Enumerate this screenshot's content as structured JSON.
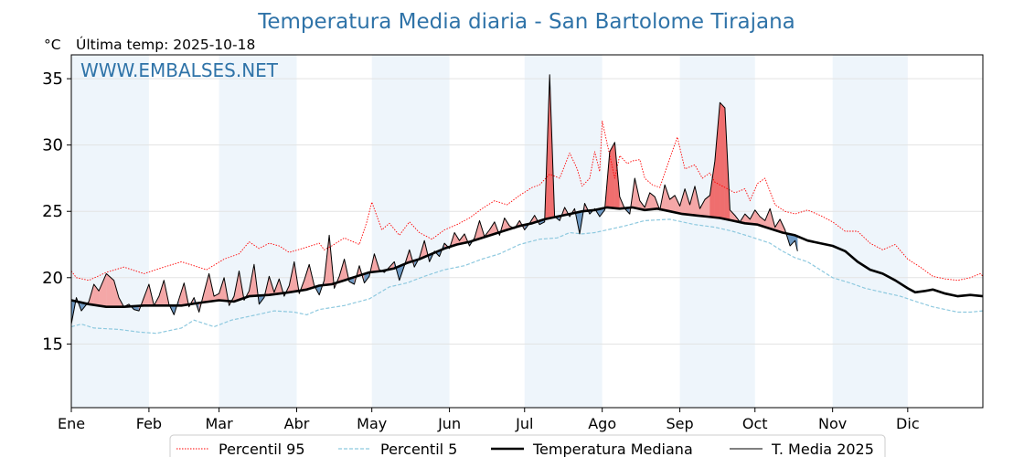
{
  "title": "Temperatura Media diaria - San Bartolome Tirajana",
  "unit_label": "°C",
  "last_temp_label": "Última temp: 2025-10-18",
  "watermark": "WWW.EMBALSES.NET",
  "colors": {
    "title": "#2f73a8",
    "p95": "#ff0000",
    "p5": "#8ec9df",
    "median": "#000000",
    "current": "#000000",
    "fill_above": "#f4a7a7",
    "fill_above_strong": "#ef6e6e",
    "fill_below": "#6f9ac4",
    "month_band": "#eef5fb"
  },
  "chart_data": {
    "type": "line",
    "title": "Temperatura Media diaria - San Bartolome Tirajana",
    "ylabel": "°C",
    "ylim": [
      10.2,
      36.8
    ],
    "yticks": [
      15,
      20,
      25,
      30,
      35
    ],
    "x_domain_days": [
      1,
      365
    ],
    "grid": true,
    "legend_placement": "bottom-center",
    "months": [
      {
        "label": "Ene",
        "day": 1
      },
      {
        "label": "Feb",
        "day": 32
      },
      {
        "label": "Mar",
        "day": 60
      },
      {
        "label": "Abr",
        "day": 91
      },
      {
        "label": "May",
        "day": 121
      },
      {
        "label": "Jun",
        "day": 152
      },
      {
        "label": "Jul",
        "day": 182
      },
      {
        "label": "Ago",
        "day": 213
      },
      {
        "label": "Sep",
        "day": 244
      },
      {
        "label": "Oct",
        "day": 274
      },
      {
        "label": "Nov",
        "day": 305
      },
      {
        "label": "Dic",
        "day": 335
      }
    ],
    "series": [
      {
        "name": "Percentil 95",
        "style": "dotted-red",
        "x": [
          1,
          3,
          8,
          15,
          22,
          30,
          38,
          45,
          55,
          62,
          68,
          72,
          76,
          80,
          84,
          88,
          95,
          100,
          102,
          105,
          110,
          116,
          119,
          121,
          125,
          128,
          132,
          136,
          140,
          145,
          150,
          155,
          160,
          165,
          170,
          175,
          180,
          185,
          188,
          192,
          196,
          200,
          203,
          205,
          208,
          210,
          212,
          213,
          218,
          220,
          223,
          225,
          228,
          230,
          233,
          236,
          240,
          243,
          246,
          250,
          253,
          256,
          258,
          262,
          266,
          270,
          272,
          275,
          278,
          282,
          286,
          290,
          295,
          300,
          305,
          310,
          315,
          320,
          325,
          330,
          335,
          340,
          345,
          350,
          355,
          360,
          364,
          365
        ],
        "values": [
          20.5,
          20.0,
          19.8,
          20.4,
          20.8,
          20.3,
          20.8,
          21.2,
          20.6,
          21.4,
          21.8,
          22.7,
          22.2,
          22.6,
          22.4,
          21.9,
          22.3,
          22.6,
          22.1,
          22.4,
          23.0,
          22.5,
          24.2,
          25.7,
          23.6,
          24.1,
          23.2,
          24.2,
          23.4,
          22.9,
          23.6,
          24.0,
          24.5,
          25.2,
          25.8,
          25.5,
          26.2,
          26.8,
          27.0,
          27.8,
          27.5,
          29.4,
          28.2,
          26.9,
          27.5,
          29.5,
          28.0,
          31.8,
          27.5,
          29.2,
          28.6,
          28.8,
          28.9,
          27.5,
          27.0,
          26.8,
          29.0,
          30.6,
          28.2,
          28.5,
          27.5,
          27.9,
          27.2,
          26.8,
          26.4,
          26.7,
          25.8,
          27.1,
          27.5,
          25.5,
          25.0,
          24.8,
          25.1,
          24.7,
          24.2,
          23.5,
          23.5,
          22.6,
          22.1,
          22.5,
          21.4,
          20.8,
          20.1,
          19.9,
          19.8,
          20.0,
          20.3,
          20.1
        ]
      },
      {
        "name": "Percentil 5",
        "style": "dashed-lightblue",
        "x": [
          1,
          5,
          10,
          20,
          28,
          35,
          45,
          50,
          58,
          65,
          75,
          82,
          90,
          95,
          100,
          110,
          120,
          128,
          135,
          142,
          150,
          158,
          165,
          172,
          180,
          188,
          195,
          200,
          205,
          210,
          215,
          222,
          230,
          240,
          250,
          258,
          265,
          272,
          280,
          285,
          290,
          295,
          300,
          305,
          312,
          318,
          325,
          332,
          340,
          345,
          350,
          355,
          360,
          365
        ],
        "values": [
          16.3,
          16.5,
          16.2,
          16.1,
          15.9,
          15.8,
          16.2,
          16.8,
          16.3,
          16.8,
          17.2,
          17.5,
          17.4,
          17.2,
          17.6,
          17.9,
          18.4,
          19.3,
          19.6,
          20.1,
          20.6,
          20.9,
          21.4,
          21.8,
          22.5,
          22.9,
          23.0,
          23.4,
          23.3,
          23.4,
          23.6,
          23.9,
          24.3,
          24.4,
          24.0,
          23.8,
          23.5,
          23.1,
          22.6,
          22.0,
          21.5,
          21.2,
          20.6,
          20.0,
          19.6,
          19.2,
          18.9,
          18.6,
          18.1,
          17.8,
          17.6,
          17.4,
          17.4,
          17.5
        ]
      },
      {
        "name": "Temperatura Mediana",
        "style": "thick-black",
        "x": [
          1,
          8,
          15,
          22,
          30,
          38,
          45,
          52,
          60,
          66,
          72,
          80,
          88,
          95,
          100,
          105,
          110,
          115,
          120,
          125,
          130,
          135,
          140,
          145,
          150,
          155,
          160,
          165,
          170,
          175,
          180,
          185,
          190,
          195,
          200,
          205,
          210,
          215,
          220,
          225,
          230,
          235,
          240,
          245,
          250,
          255,
          260,
          265,
          270,
          275,
          280,
          285,
          290,
          295,
          300,
          305,
          310,
          315,
          320,
          325,
          330,
          335,
          338,
          342,
          345,
          350,
          355,
          360,
          365
        ],
        "values": [
          18.3,
          18.0,
          17.8,
          17.8,
          17.9,
          17.9,
          17.9,
          18.1,
          18.3,
          18.2,
          18.6,
          18.7,
          18.9,
          19.1,
          19.4,
          19.5,
          19.8,
          20.1,
          20.4,
          20.5,
          20.7,
          21.1,
          21.4,
          21.8,
          22.2,
          22.5,
          22.7,
          23.0,
          23.3,
          23.6,
          23.9,
          24.1,
          24.4,
          24.6,
          24.8,
          25.0,
          25.1,
          25.3,
          25.2,
          25.3,
          25.1,
          25.2,
          25.0,
          24.8,
          24.7,
          24.6,
          24.5,
          24.3,
          24.1,
          24.0,
          23.7,
          23.4,
          23.2,
          22.8,
          22.6,
          22.4,
          22.0,
          21.2,
          20.6,
          20.3,
          19.8,
          19.2,
          18.9,
          19.0,
          19.1,
          18.8,
          18.6,
          18.7,
          18.6
        ]
      },
      {
        "name": "T. Media 2025",
        "style": "thin-black",
        "x": [
          1,
          3,
          5,
          8,
          10,
          12,
          15,
          18,
          20,
          22,
          24,
          26,
          28,
          30,
          32,
          34,
          36,
          38,
          40,
          42,
          44,
          46,
          48,
          50,
          52,
          54,
          56,
          58,
          60,
          62,
          64,
          66,
          68,
          70,
          72,
          74,
          76,
          78,
          80,
          82,
          84,
          86,
          88,
          90,
          92,
          94,
          96,
          98,
          100,
          102,
          104,
          106,
          108,
          110,
          112,
          114,
          116,
          118,
          120,
          122,
          124,
          126,
          128,
          130,
          132,
          134,
          136,
          138,
          140,
          142,
          144,
          146,
          148,
          150,
          152,
          154,
          156,
          158,
          160,
          162,
          164,
          166,
          168,
          170,
          172,
          174,
          176,
          178,
          180,
          182,
          184,
          186,
          188,
          190,
          192,
          194,
          196,
          198,
          200,
          202,
          204,
          206,
          208,
          210,
          212,
          214,
          216,
          218,
          220,
          222,
          224,
          226,
          228,
          230,
          232,
          234,
          236,
          238,
          240,
          242,
          244,
          246,
          248,
          250,
          252,
          254,
          256,
          258,
          260,
          262,
          264,
          266,
          268,
          270,
          272,
          274,
          276,
          278,
          280,
          282,
          284,
          286,
          288,
          290,
          291
        ],
        "values": [
          16.5,
          18.5,
          17.5,
          18.2,
          19.5,
          19.0,
          20.3,
          19.8,
          18.5,
          17.8,
          18.0,
          17.6,
          17.5,
          18.5,
          19.5,
          17.9,
          18.6,
          19.8,
          18.0,
          17.2,
          18.4,
          19.6,
          17.8,
          18.5,
          17.4,
          18.9,
          20.3,
          18.6,
          18.8,
          20.0,
          17.9,
          18.6,
          20.5,
          18.3,
          19.0,
          21.0,
          18.0,
          18.5,
          20.1,
          18.9,
          19.9,
          18.6,
          19.4,
          21.2,
          18.8,
          19.8,
          21.0,
          19.4,
          18.7,
          19.8,
          23.2,
          19.2,
          20.1,
          21.4,
          19.7,
          19.5,
          20.9,
          19.6,
          20.1,
          21.8,
          20.6,
          20.4,
          20.8,
          21.2,
          19.8,
          20.9,
          22.1,
          20.8,
          21.5,
          22.8,
          21.2,
          22.0,
          21.6,
          22.6,
          22.2,
          23.4,
          22.8,
          23.3,
          22.4,
          23.0,
          24.3,
          23.1,
          23.6,
          24.2,
          23.2,
          24.5,
          23.9,
          23.7,
          24.3,
          23.6,
          24.1,
          24.7,
          24.0,
          24.2,
          35.3,
          24.6,
          24.3,
          25.3,
          24.6,
          25.2,
          23.3,
          25.6,
          24.8,
          25.2,
          24.6,
          25.1,
          29.5,
          30.2,
          26.1,
          25.2,
          24.8,
          27.5,
          25.8,
          25.3,
          26.4,
          26.1,
          25.1,
          27.0,
          25.9,
          26.2,
          25.4,
          26.7,
          25.5,
          26.9,
          25.2,
          25.9,
          26.2,
          28.8,
          33.2,
          32.8,
          25.1,
          24.7,
          24.2,
          24.8,
          24.4,
          25.1,
          24.6,
          24.3,
          25.2,
          23.8,
          24.4,
          23.6,
          22.4,
          22.8,
          22.0
        ]
      }
    ],
    "legend": [
      {
        "label": "Percentil 95",
        "style": "dotted-red"
      },
      {
        "label": "Percentil 5",
        "style": "dashed-lightblue"
      },
      {
        "label": "Temperatura Mediana",
        "style": "thick-black"
      },
      {
        "label": "T. Media 2025",
        "style": "thin-black"
      }
    ]
  }
}
